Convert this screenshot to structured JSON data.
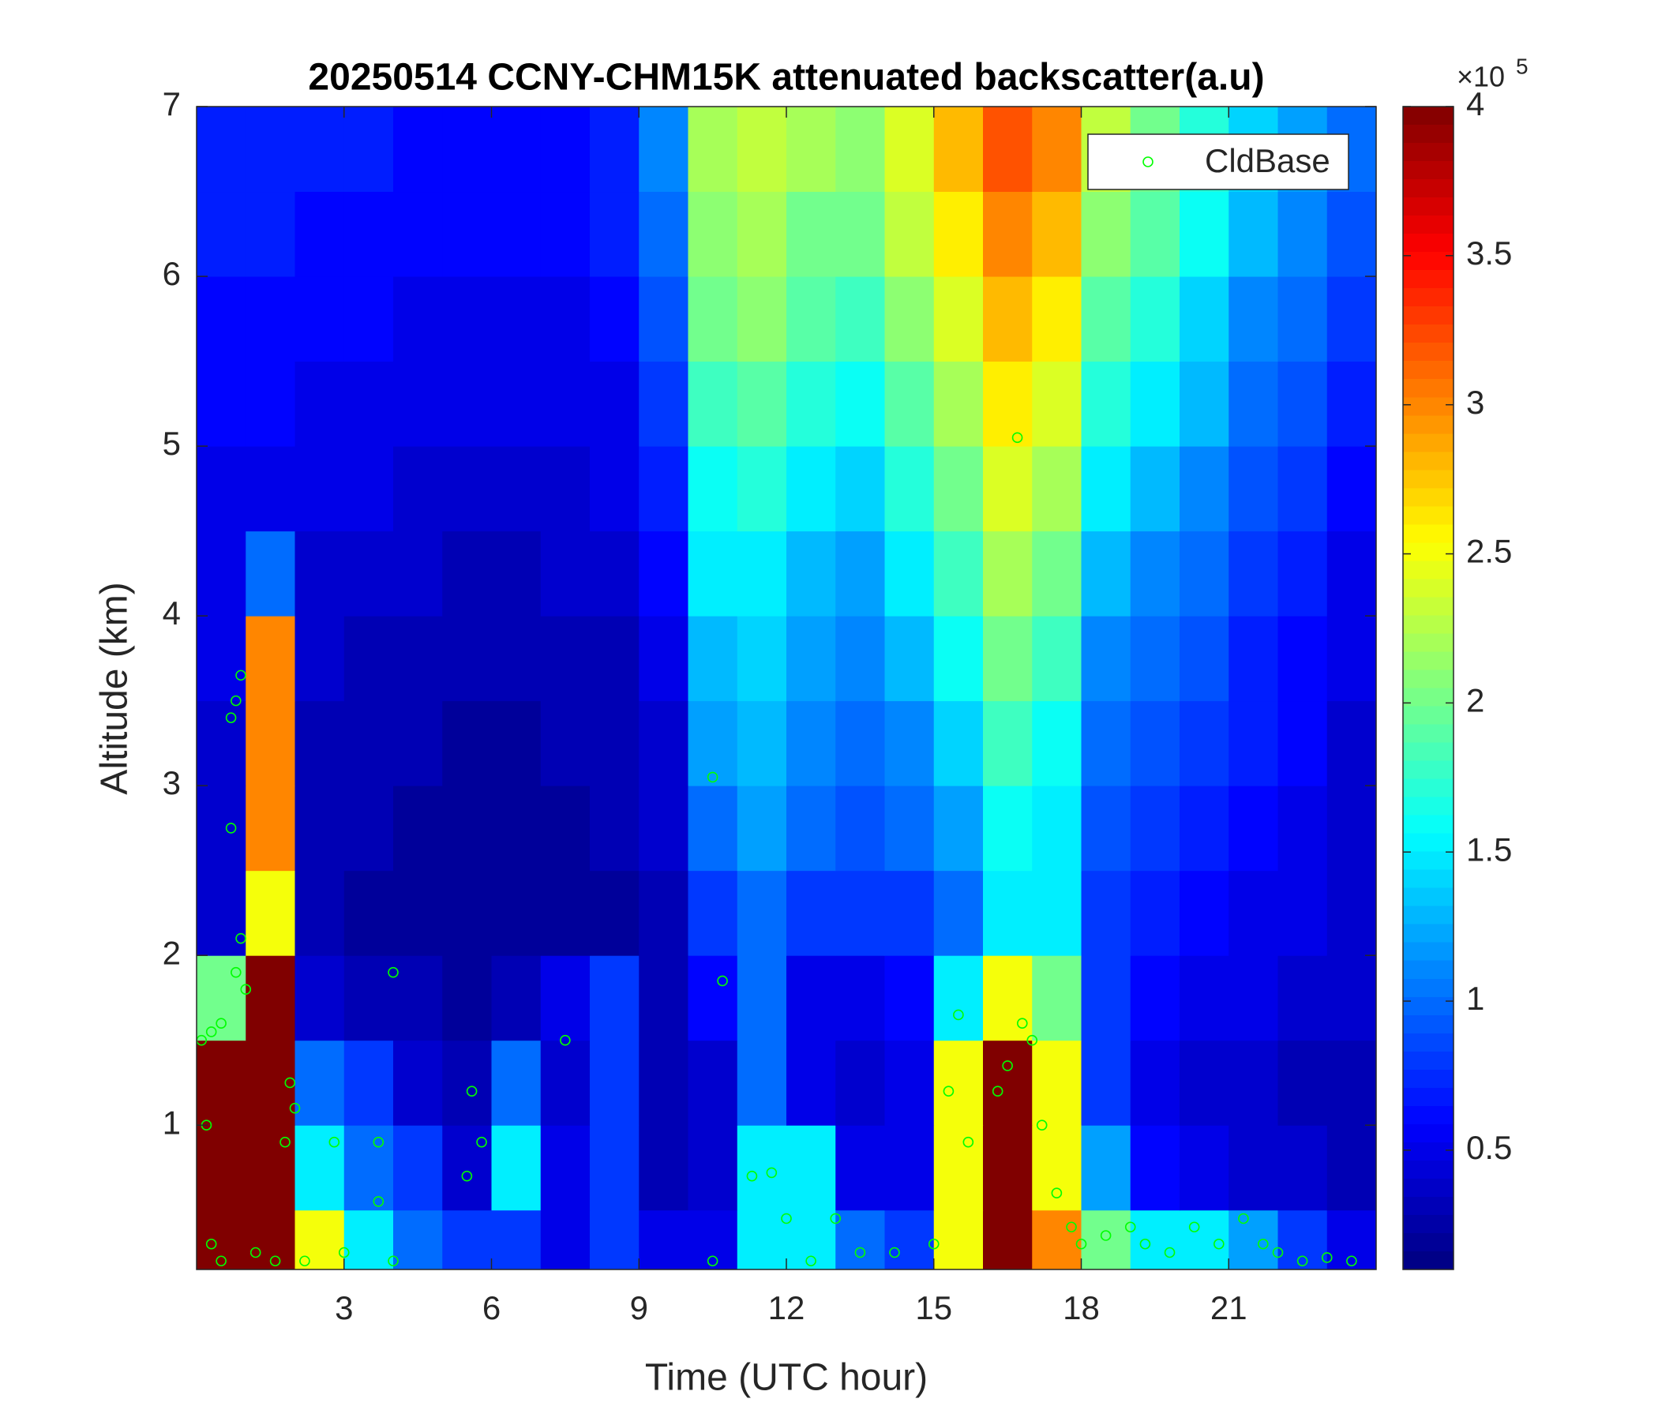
{
  "chart_data": {
    "type": "heatmap",
    "title": "20250514 CCNY-CHM15K attenuated backscatter(a.u)",
    "xlabel": "Time (UTC hour)",
    "ylabel": "Altitude (km)",
    "xlim": [
      0,
      24
    ],
    "ylim": [
      0.15,
      7
    ],
    "xticks": [
      3,
      6,
      9,
      12,
      15,
      18,
      21
    ],
    "yticks": [
      1,
      2,
      3,
      4,
      5,
      6,
      7
    ],
    "x_edges": [
      0,
      1,
      2,
      3,
      4,
      5,
      6,
      7,
      8,
      9,
      10,
      11,
      12,
      13,
      14,
      15,
      16,
      17,
      18,
      19,
      20,
      21,
      22,
      23,
      24
    ],
    "y_edges": [
      0.15,
      0.5,
      1,
      1.5,
      2,
      2.5,
      3,
      3.5,
      4,
      4.5,
      5,
      5.5,
      6,
      6.5,
      7
    ],
    "z": [
      [
        4,
        4,
        2.5,
        1.5,
        1,
        0.8,
        0.8,
        0.5,
        0.8,
        0.5,
        0.5,
        1.5,
        1.5,
        1,
        0.8,
        2.5,
        4,
        3,
        2,
        1.5,
        1.5,
        1.2,
        0.8,
        0.5
      ],
      [
        4,
        4,
        1.5,
        1,
        0.8,
        0.4,
        1.5,
        0.5,
        0.8,
        0.3,
        0.4,
        1.5,
        1.5,
        0.5,
        0.5,
        2.5,
        4,
        2.5,
        1.2,
        0.6,
        0.5,
        0.4,
        0.4,
        0.3
      ],
      [
        4,
        4,
        1,
        0.8,
        0.4,
        0.3,
        1,
        0.4,
        0.8,
        0.3,
        0.4,
        1,
        0.5,
        0.4,
        0.5,
        2.5,
        4,
        2.5,
        0.8,
        0.5,
        0.4,
        0.4,
        0.3,
        0.3
      ],
      [
        2,
        4,
        0.4,
        0.3,
        0.3,
        0.2,
        0.3,
        0.5,
        0.8,
        0.3,
        0.6,
        1,
        0.5,
        0.5,
        0.6,
        1.5,
        2.5,
        2,
        0.8,
        0.6,
        0.5,
        0.5,
        0.4,
        0.4
      ],
      [
        0.4,
        2.5,
        0.3,
        0.2,
        0.2,
        0.2,
        0.2,
        0.2,
        0.2,
        0.3,
        0.8,
        1,
        0.8,
        0.8,
        0.8,
        1,
        1.5,
        1.5,
        0.8,
        0.7,
        0.6,
        0.5,
        0.5,
        0.4
      ],
      [
        0.4,
        3,
        0.3,
        0.3,
        0.2,
        0.2,
        0.2,
        0.2,
        0.3,
        0.4,
        1,
        1.2,
        1,
        0.9,
        1,
        1.2,
        1.6,
        1.5,
        0.9,
        0.8,
        0.7,
        0.6,
        0.5,
        0.4
      ],
      [
        0.4,
        3,
        0.3,
        0.3,
        0.3,
        0.2,
        0.2,
        0.3,
        0.3,
        0.4,
        1.2,
        1.3,
        1.1,
        1,
        1.1,
        1.4,
        1.8,
        1.6,
        1,
        0.9,
        0.8,
        0.7,
        0.6,
        0.4
      ],
      [
        0.5,
        3,
        0.4,
        0.3,
        0.3,
        0.3,
        0.3,
        0.3,
        0.3,
        0.5,
        1.3,
        1.4,
        1.2,
        1.1,
        1.3,
        1.6,
        2,
        1.8,
        1.1,
        1,
        0.9,
        0.7,
        0.6,
        0.5
      ],
      [
        0.5,
        1,
        0.4,
        0.4,
        0.4,
        0.3,
        0.3,
        0.4,
        0.4,
        0.6,
        1.5,
        1.5,
        1.3,
        1.2,
        1.5,
        1.8,
        2.2,
        2,
        1.3,
        1.1,
        1,
        0.8,
        0.7,
        0.5
      ],
      [
        0.5,
        0.5,
        0.5,
        0.5,
        0.4,
        0.4,
        0.4,
        0.4,
        0.5,
        0.7,
        1.6,
        1.7,
        1.5,
        1.4,
        1.7,
        2,
        2.4,
        2.2,
        1.5,
        1.3,
        1.1,
        0.9,
        0.8,
        0.6
      ],
      [
        0.6,
        0.6,
        0.5,
        0.5,
        0.5,
        0.5,
        0.5,
        0.5,
        0.5,
        0.8,
        1.8,
        1.9,
        1.7,
        1.6,
        1.9,
        2.2,
        2.6,
        2.4,
        1.7,
        1.5,
        1.3,
        1,
        0.9,
        0.7
      ],
      [
        0.6,
        0.6,
        0.6,
        0.6,
        0.5,
        0.5,
        0.5,
        0.5,
        0.6,
        0.9,
        2,
        2.1,
        1.9,
        1.8,
        2.1,
        2.4,
        2.8,
        2.6,
        1.9,
        1.7,
        1.4,
        1.1,
        1,
        0.8
      ],
      [
        0.7,
        0.7,
        0.6,
        0.6,
        0.6,
        0.6,
        0.6,
        0.6,
        0.7,
        1,
        2.1,
        2.2,
        2,
        2,
        2.3,
        2.6,
        3,
        2.8,
        2.1,
        1.9,
        1.6,
        1.3,
        1.1,
        0.9
      ],
      [
        0.7,
        0.7,
        0.7,
        0.7,
        0.6,
        0.6,
        0.6,
        0.6,
        0.7,
        1.1,
        2.2,
        2.3,
        2.2,
        2.1,
        2.4,
        2.8,
        3.2,
        3,
        2.3,
        2,
        1.7,
        1.4,
        1.2,
        1
      ]
    ],
    "colormap": "jet",
    "clim": [
      0.1,
      4
    ],
    "cticks": [
      0.5,
      1,
      1.5,
      2,
      2.5,
      3,
      3.5,
      4
    ],
    "colorbar_multiplier": "×10",
    "colorbar_exponent": "5",
    "series": [
      {
        "name": "CldBase",
        "color": "#00ff00",
        "x": [
          0.1,
          0.3,
          0.5,
          0.2,
          0.3,
          0.5,
          0.7,
          0.8,
          0.9,
          0.7,
          0.8,
          0.9,
          1.0,
          1.2,
          1.6,
          1.9,
          1.8,
          2.0,
          2.2,
          2.8,
          3.0,
          3.7,
          3.7,
          4.0,
          4.0,
          5.6,
          5.8,
          5.5,
          7.5,
          10.5,
          10.7,
          10.5,
          11.3,
          11.7,
          12.0,
          12.5,
          13.0,
          13.5,
          14.2,
          15.0,
          15.3,
          15.5,
          15.7,
          16.3,
          16.5,
          16.7,
          16.8,
          17.0,
          17.2,
          17.5,
          17.8,
          18.0,
          18.5,
          19.0,
          19.3,
          19.8,
          20.3,
          20.8,
          21.3,
          21.7,
          22.0,
          22.5,
          23.0,
          23.5
        ],
        "y": [
          1.5,
          1.55,
          1.6,
          1.0,
          0.3,
          0.2,
          3.4,
          3.5,
          3.65,
          2.75,
          1.9,
          2.1,
          1.8,
          0.25,
          0.2,
          1.25,
          0.9,
          1.1,
          0.2,
          0.9,
          0.25,
          0.55,
          0.9,
          1.9,
          0.2,
          1.2,
          0.9,
          0.7,
          1.5,
          3.05,
          1.85,
          0.2,
          0.7,
          0.72,
          0.45,
          0.2,
          0.45,
          0.25,
          0.25,
          0.3,
          1.2,
          1.65,
          0.9,
          1.2,
          1.35,
          5.05,
          1.6,
          1.5,
          1.0,
          0.6,
          0.4,
          0.3,
          0.35,
          0.4,
          0.3,
          0.25,
          0.4,
          0.3,
          0.45,
          0.3,
          0.25,
          0.2,
          0.22,
          0.2
        ]
      }
    ],
    "legend": "northeast"
  }
}
